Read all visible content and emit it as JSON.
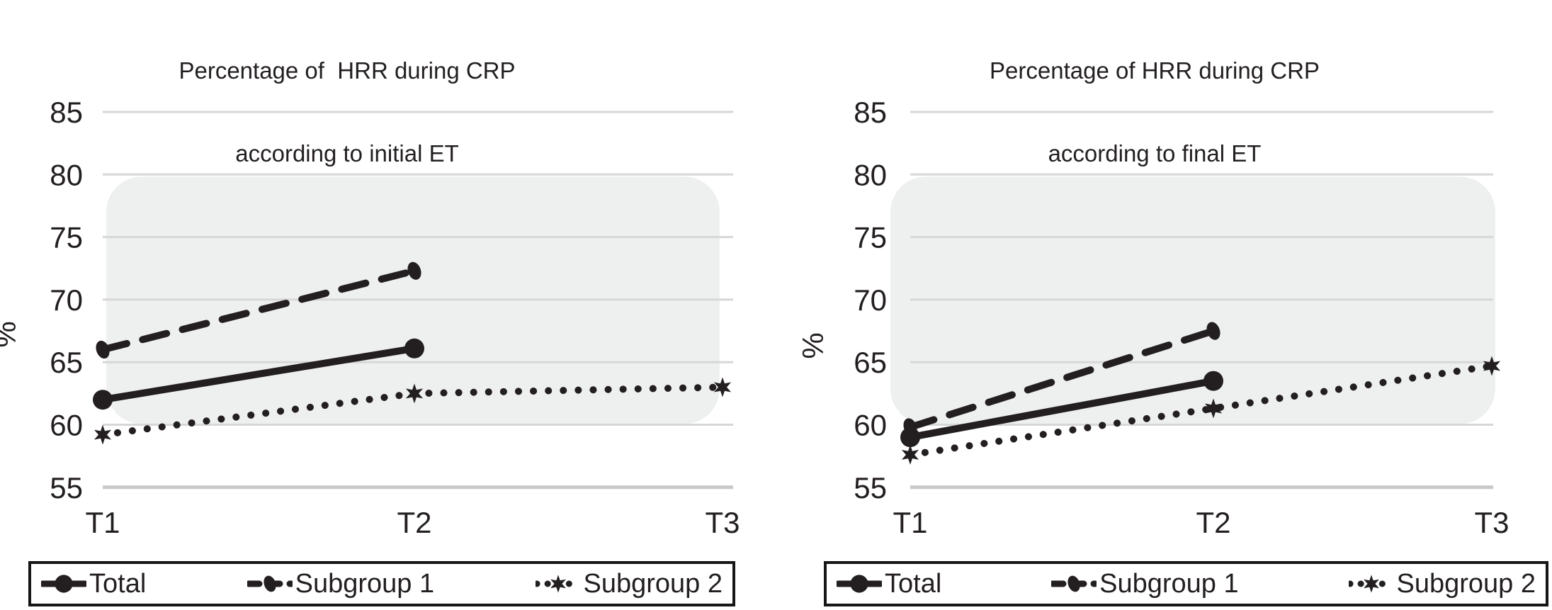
{
  "colors": {
    "ink": "#231f20",
    "gridline": "#d7d7d7",
    "gridline_bottom": "#c8c8c8",
    "band_fill": "#eef0ef",
    "background": "#ffffff",
    "legend_border": "#161616"
  },
  "chart_data": [
    {
      "type": "line",
      "title": "Percentage of  HRR during CRP according to initial ET",
      "title_lines": [
        "Percentage of  HRR during CRP",
        "according to initial ET"
      ],
      "xlabel": "",
      "ylabel": "%",
      "ylim": [
        55,
        85
      ],
      "y_ticks": [
        85,
        80,
        75,
        70,
        65,
        60,
        55
      ],
      "grid": true,
      "legend_position": "bottom",
      "categories": [
        "T1",
        "T2",
        "T3"
      ],
      "series": [
        {
          "name": "Total",
          "line_style": "solid",
          "marker": "circle",
          "values": [
            62.0,
            66.1,
            null
          ]
        },
        {
          "name": "Subgroup 1",
          "line_style": "dashed",
          "marker": "oval",
          "values": [
            66.0,
            72.3,
            null
          ]
        },
        {
          "name": "Subgroup 2",
          "line_style": "dotted",
          "marker": "star",
          "values": [
            59.2,
            62.5,
            63.0
          ]
        }
      ]
    },
    {
      "type": "line",
      "title": "Percentage of HRR during CRP according to final ET",
      "title_lines": [
        "Percentage of HRR during CRP",
        "according to final ET"
      ],
      "xlabel": "",
      "ylabel": "%",
      "ylim": [
        55,
        85
      ],
      "y_ticks": [
        85,
        80,
        75,
        70,
        65,
        60,
        55
      ],
      "grid": true,
      "legend_position": "bottom",
      "categories": [
        "T1",
        "T2",
        "T3"
      ],
      "series": [
        {
          "name": "Total",
          "line_style": "solid",
          "marker": "circle",
          "values": [
            59.0,
            63.5,
            null
          ]
        },
        {
          "name": "Subgroup 1",
          "line_style": "dashed",
          "marker": "oval",
          "values": [
            59.8,
            67.5,
            null
          ]
        },
        {
          "name": "Subgroup 2",
          "line_style": "dotted",
          "marker": "star",
          "values": [
            57.6,
            61.3,
            64.7
          ]
        }
      ]
    }
  ]
}
